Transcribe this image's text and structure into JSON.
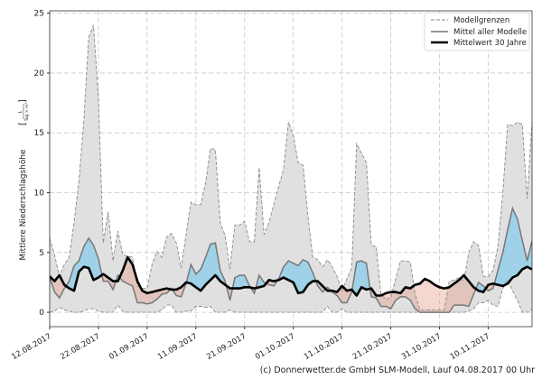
{
  "chart_data": {
    "type": "area",
    "title": "",
    "ylabel": "Mittlere Niederschlagshöhe",
    "ylabel_unit_num": "L",
    "ylabel_unit_den": "Tag × m²",
    "ylim": [
      -1.2,
      25.2
    ],
    "xlim_days": [
      0,
      99
    ],
    "yticks": [
      0,
      5,
      10,
      15,
      20,
      25
    ],
    "xtick_days": [
      0,
      10,
      20,
      30,
      40,
      50,
      60,
      70,
      80,
      90
    ],
    "xtick_labels": [
      "12.08.2017",
      "22.08.2017",
      "01.09.2017",
      "11.09.2017",
      "21.09.2017",
      "01.10.2017",
      "11.10.2017",
      "21.10.2017",
      "31.10.2017",
      "10.11.2017"
    ],
    "grid": true,
    "legend_position": "top-right",
    "legend": [
      "Modellgrenzen",
      "Mittel aller Modelle",
      "Mittelwert 30 Jahre"
    ],
    "colors": {
      "band": "#e0e0e0",
      "bound": "#8a8a8a",
      "mean": "#777777",
      "clim": "#000000",
      "above": "#9fd1e8",
      "below": "rgba(225,150,125,0.38)"
    },
    "series": [
      {
        "name": "Modellgrenzen oben",
        "values": [
          6.2,
          4.8,
          3.0,
          4.0,
          4.6,
          7.5,
          11,
          16,
          23,
          24,
          18,
          5.8,
          8.4,
          4.3,
          6.8,
          4.8,
          4.7,
          4.6,
          2.2,
          2.0,
          2.0,
          4.0,
          5.1,
          4.6,
          6.3,
          6.6,
          5.8,
          3.7,
          6.5,
          9.2,
          9.0,
          9.0,
          10.8,
          13.7,
          13.6,
          7.5,
          6.4,
          3.6,
          7.3,
          7.3,
          7.6,
          5.9,
          5.9,
          12.1,
          6.5,
          7.5,
          9.0,
          10.5,
          12.0,
          15.9,
          14.8,
          12.5,
          12.3,
          8.0,
          4.6,
          4.4,
          3.8,
          4.4,
          3.8,
          3.0,
          1.8,
          2.8,
          3.7,
          14.1,
          13.3,
          12.5,
          5.6,
          5.5,
          1.5,
          1.1,
          1.2,
          2.8,
          4.3,
          4.3,
          4.2,
          1.5,
          0.2,
          0.2,
          0.2,
          0.2,
          0.2,
          0.2,
          2.6,
          2.7,
          2.9,
          2.6,
          5.0,
          5.9,
          5.6,
          3.0,
          3.0,
          3.5,
          5.5,
          10.0,
          15.7,
          15.6,
          15.9,
          15.7,
          9.5,
          16.0
        ]
      },
      {
        "name": "Modellgrenzen unten",
        "values": [
          0,
          0.1,
          0.4,
          0.2,
          0.1,
          0,
          0,
          0.1,
          0.3,
          0.3,
          0.1,
          0,
          0,
          0,
          0.6,
          0.1,
          0,
          0,
          0,
          0,
          0,
          0,
          0,
          0.2,
          0.6,
          0.6,
          0,
          0,
          0.1,
          0.1,
          0.5,
          0.5,
          0.4,
          0.5,
          0,
          0,
          0,
          0.2,
          0,
          0,
          0,
          0,
          0,
          0,
          0,
          0,
          0,
          0,
          0,
          0,
          0,
          0,
          0,
          0,
          0,
          0,
          0,
          0.5,
          0,
          0,
          0.3,
          0,
          0,
          0,
          0,
          0,
          0,
          0,
          0,
          0,
          0,
          0,
          0,
          0,
          0,
          0,
          0,
          0,
          0,
          0,
          0,
          0,
          0,
          0,
          0,
          0,
          0.1,
          0.3,
          0.8,
          0.8,
          1.0,
          0.6,
          0.5,
          2.0,
          2.7,
          1.8,
          1.0,
          0,
          0,
          0.2
        ]
      },
      {
        "name": "Mittel aller Modelle",
        "values": [
          2.9,
          1.7,
          1.2,
          2.0,
          2.6,
          3.9,
          4.3,
          5.5,
          6.2,
          5.6,
          4.5,
          2.6,
          2.6,
          1.9,
          3.1,
          2.6,
          2.4,
          2.2,
          0.8,
          0.8,
          0.7,
          0.8,
          1.1,
          1.5,
          1.6,
          2.0,
          1.4,
          1.3,
          2.4,
          4.0,
          3.2,
          3.6,
          4.6,
          5.7,
          5.8,
          3.5,
          2.6,
          1.0,
          2.9,
          3.1,
          3.1,
          2.2,
          1.6,
          3.1,
          2.5,
          2.3,
          2.2,
          2.8,
          3.8,
          4.3,
          4.1,
          3.9,
          4.4,
          4.2,
          3.3,
          2.2,
          1.7,
          2.1,
          1.7,
          1.4,
          0.8,
          0.8,
          1.7,
          4.2,
          4.3,
          4.1,
          1.3,
          1.2,
          0.5,
          0.5,
          0.3,
          1.0,
          1.3,
          1.3,
          1.0,
          0.3,
          0,
          0,
          0,
          0,
          0,
          0,
          0,
          0.6,
          0.6,
          0.6,
          0.5,
          1.5,
          2.5,
          2.2,
          1.8,
          2.0,
          3.5,
          5.0,
          6.9,
          8.7,
          7.8,
          6.0,
          4.3,
          6.0
        ]
      },
      {
        "name": "Mittelwert 30 Jahre",
        "values": [
          3.0,
          2.6,
          3.1,
          2.3,
          2.0,
          1.8,
          3.4,
          3.8,
          3.7,
          2.7,
          2.9,
          3.2,
          2.9,
          2.6,
          2.6,
          3.5,
          4.6,
          4.0,
          2.6,
          1.8,
          1.6,
          1.7,
          1.8,
          1.9,
          2.0,
          1.9,
          1.9,
          2.1,
          2.5,
          2.4,
          2.1,
          1.8,
          2.3,
          2.7,
          3.1,
          2.6,
          2.3,
          2.0,
          2.0,
          2.0,
          2.1,
          2.1,
          2.0,
          2.1,
          2.2,
          2.7,
          2.6,
          2.7,
          2.9,
          2.7,
          2.5,
          1.6,
          1.7,
          2.3,
          2.6,
          2.6,
          2.2,
          1.8,
          1.8,
          1.7,
          2.2,
          1.8,
          1.9,
          1.4,
          2.1,
          1.9,
          2.0,
          1.4,
          1.4,
          1.6,
          1.7,
          1.7,
          1.6,
          2.1,
          2.0,
          2.3,
          2.4,
          2.8,
          2.6,
          2.3,
          2.1,
          2.0,
          2.1,
          2.4,
          2.7,
          3.1,
          2.6,
          2.1,
          1.8,
          1.7,
          2.3,
          2.4,
          2.3,
          2.2,
          2.4,
          2.9,
          3.1,
          3.6,
          3.8,
          3.6
        ]
      }
    ]
  },
  "footer": "(c) Donnerwetter.de GmbH SLM-Modell, Lauf 04.08.2017 00 Uhr"
}
